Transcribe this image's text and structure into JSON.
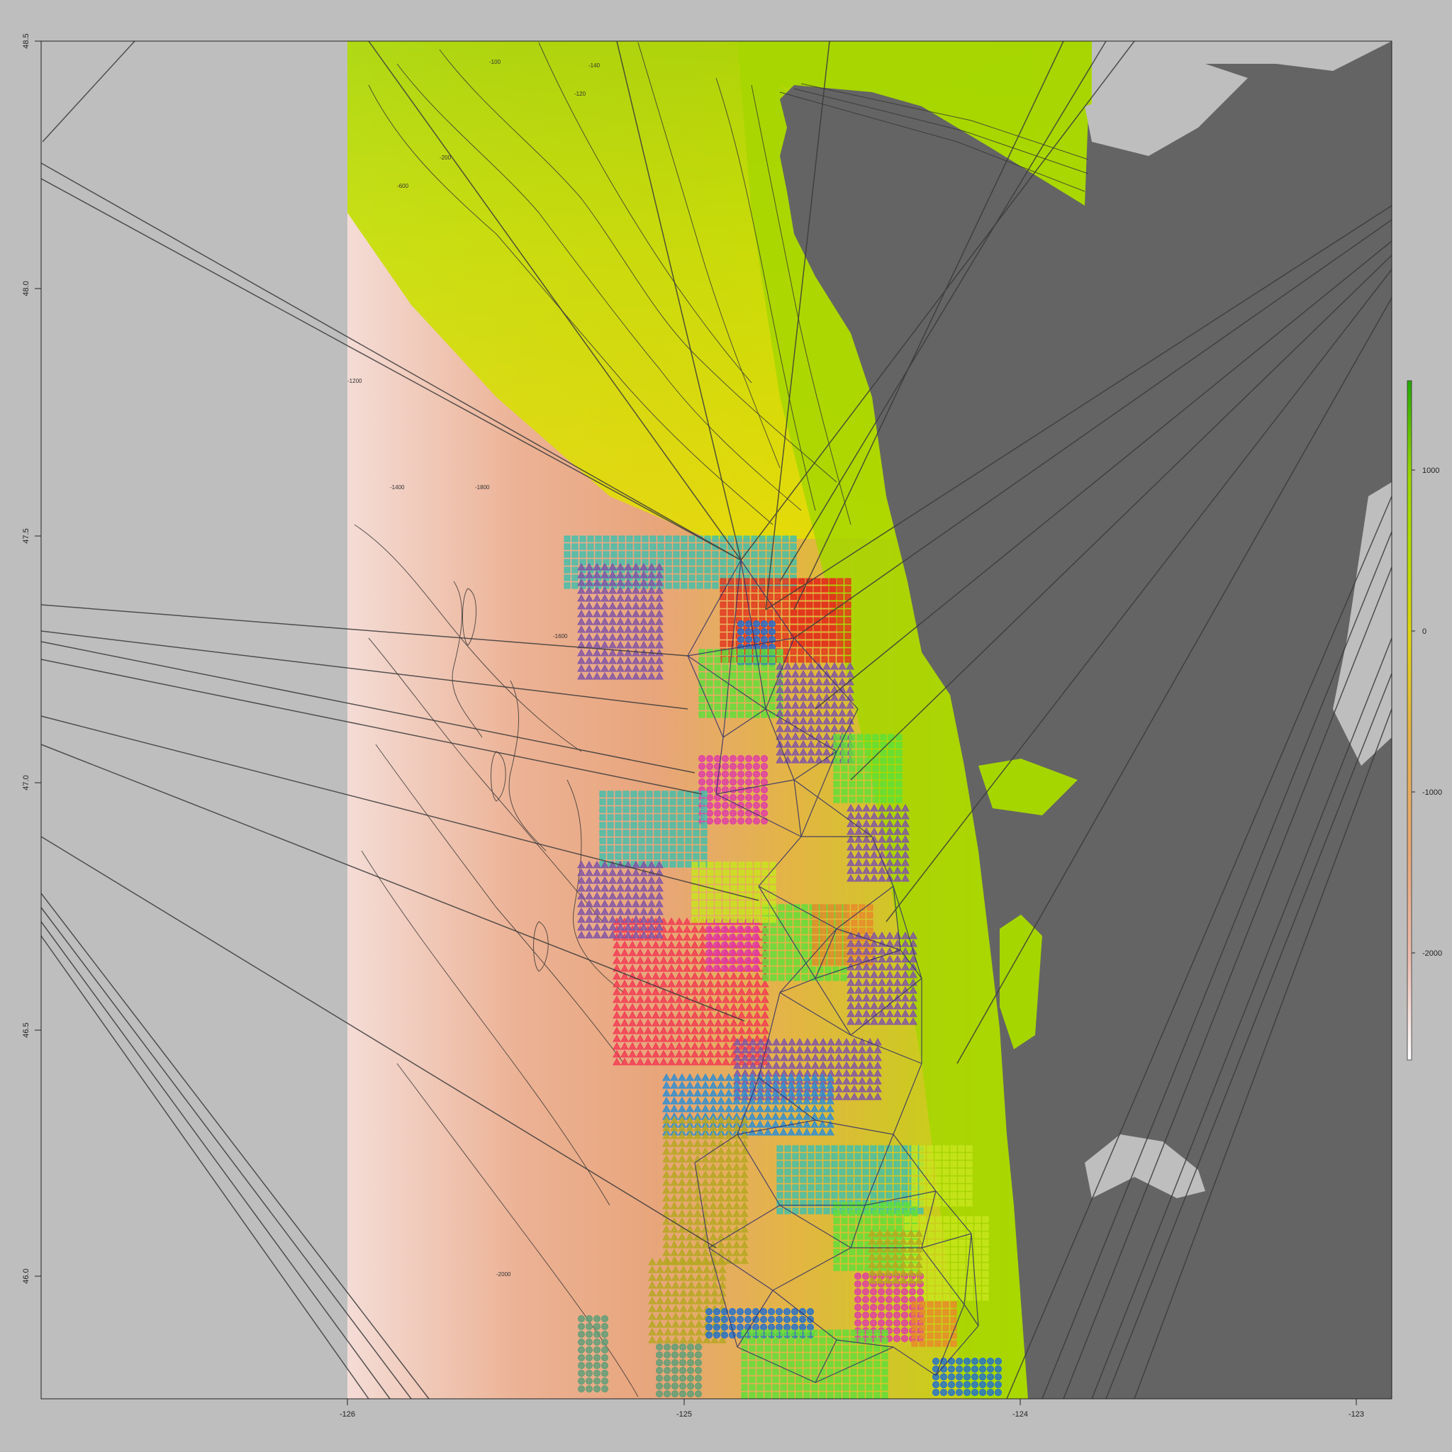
{
  "map": {
    "x_axis": {
      "ticks": [
        {
          "value": -126,
          "label": "-126"
        },
        {
          "value": -125,
          "label": "-125"
        },
        {
          "value": -124,
          "label": "-124"
        },
        {
          "value": -123,
          "label": "-123"
        }
      ]
    },
    "y_axis": {
      "ticks": [
        {
          "value": 48.5,
          "label": "48.5"
        },
        {
          "value": 48.0,
          "label": "48.0"
        },
        {
          "value": 47.5,
          "label": "47.5"
        },
        {
          "value": 47.0,
          "label": "47.0"
        },
        {
          "value": 46.5,
          "label": "46.5"
        },
        {
          "value": 46.0,
          "label": "46.0"
        }
      ]
    },
    "legend": {
      "ticks": [
        {
          "value": 1000,
          "label": "1000"
        },
        {
          "value": 0,
          "label": "0"
        },
        {
          "value": -1000,
          "label": "-1000"
        },
        {
          "value": -2000,
          "label": "-2000"
        }
      ],
      "colors": [
        "#ffffff",
        "#eebcb0",
        "#e8a878",
        "#e6b24a",
        "#e2d415",
        "#d9e600",
        "#b2dc00",
        "#9bd600",
        "#22a800"
      ]
    },
    "colors": {
      "background": "#bebebe",
      "land": "#646464",
      "water": "#bebebe",
      "deep_ocean": "#e8a57b",
      "shelf": "#a6d600",
      "contour": "#333333",
      "track_lines": "#3a3a3a"
    },
    "contour_labels": [
      {
        "text": "-1800"
      },
      {
        "text": "-1600"
      },
      {
        "text": "-1400"
      },
      {
        "text": "-1200"
      },
      {
        "text": "-2000"
      },
      {
        "text": "-200"
      },
      {
        "text": "-600"
      },
      {
        "text": "-140"
      },
      {
        "text": "-120"
      },
      {
        "text": "-100"
      }
    ],
    "survey_blocks": [
      {
        "color": "#3fbfad",
        "symbol": "square"
      },
      {
        "color": "#e2331d",
        "symbol": "square"
      },
      {
        "color": "#7f53a6",
        "symbol": "triangle"
      },
      {
        "color": "#1e6ed2",
        "symbol": "circle"
      },
      {
        "color": "#5de03a",
        "symbol": "square"
      },
      {
        "color": "#e03aa8",
        "symbol": "circle"
      },
      {
        "color": "#b5a821",
        "symbol": "triangle"
      },
      {
        "color": "#f23a52",
        "symbol": "triangle"
      },
      {
        "color": "#c8e61d",
        "symbol": "square"
      },
      {
        "color": "#2c8dd4",
        "symbol": "triangle"
      },
      {
        "color": "#5a9e78",
        "symbol": "circle"
      },
      {
        "color": "#e8882a",
        "symbol": "square"
      }
    ]
  }
}
